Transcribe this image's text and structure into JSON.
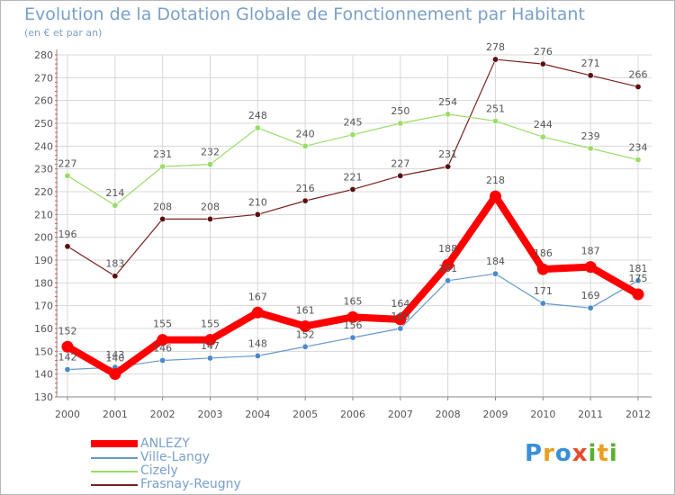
{
  "header": {
    "title": "Evolution de la Dotation Globale de Fonctionnement par Habitant",
    "subtitle": "(en € et par an)"
  },
  "logo": {
    "text": "Proxiti",
    "letters": [
      "P",
      "r",
      "o",
      "x",
      "i",
      "t",
      "i"
    ],
    "colors": [
      "#3a8fd9",
      "#e8a020",
      "#3a8fd9",
      "#e84a2a",
      "#58b030",
      "#e8a020",
      "#58b030"
    ]
  },
  "chart_data": {
    "type": "line",
    "title": "Evolution de la Dotation Globale de Fonctionnement par Habitant",
    "subtitle": "(en € et par an)",
    "xlabel": "",
    "ylabel": "",
    "x": [
      "2000",
      "2001",
      "2002",
      "2003",
      "2004",
      "2005",
      "2006",
      "2007",
      "2008",
      "2009",
      "2010",
      "2011",
      "2012"
    ],
    "ylim": [
      130,
      280
    ],
    "yticks": [
      "130",
      "140",
      "150",
      "160",
      "170",
      "180",
      "190",
      "200",
      "210",
      "220",
      "230",
      "240",
      "250",
      "260",
      "270",
      "280"
    ],
    "grid": true,
    "legend": "bottom-left",
    "series": [
      {
        "name": "ANLEZY",
        "color": "#ff0000",
        "values": [
          152,
          140,
          155,
          155,
          167,
          161,
          165,
          164,
          188,
          218,
          186,
          187,
          175
        ],
        "labels": [
          "152",
          "140",
          "155",
          "155",
          "167",
          "161",
          "165",
          "164",
          "188",
          "218",
          "186",
          "187",
          "175"
        ]
      },
      {
        "name": "Ville-Langy",
        "color": "#6699cc",
        "values": [
          142,
          143,
          146,
          147,
          148,
          152,
          156,
          160,
          181,
          184,
          171,
          169,
          181
        ],
        "labels": [
          "142",
          "143",
          "146",
          "147",
          "148",
          "152",
          "156",
          "160",
          "181",
          "184",
          "171",
          "169",
          "181"
        ]
      },
      {
        "name": "Cizely",
        "color": "#99dd66",
        "values": [
          227,
          214,
          231,
          232,
          248,
          240,
          245,
          250,
          254,
          251,
          244,
          239,
          234
        ],
        "labels": [
          "227",
          "214",
          "231",
          "232",
          "248",
          "240",
          "245",
          "250",
          "254",
          "251",
          "244",
          "239",
          "234"
        ]
      },
      {
        "name": "Frasnay-Reugny",
        "color": "#7a2020",
        "values": [
          196,
          183,
          208,
          208,
          210,
          216,
          221,
          227,
          231,
          278,
          276,
          271,
          266
        ],
        "labels": [
          "196",
          "183",
          "208",
          "208",
          "210",
          "216",
          "221",
          "227",
          "231",
          "278",
          "276",
          "271",
          "266"
        ]
      }
    ]
  }
}
